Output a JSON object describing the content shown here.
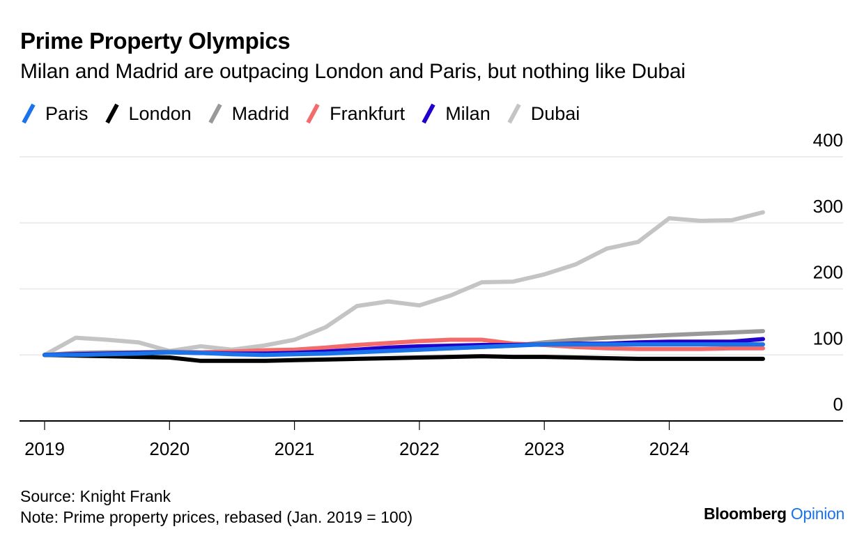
{
  "header": {
    "title": "Prime Property Olympics",
    "subtitle": "Milan and Madrid are outpacing London and Paris, but nothing like Dubai"
  },
  "legend": [
    {
      "name": "Paris",
      "color": "#1a73e8"
    },
    {
      "name": "London",
      "color": "#000000"
    },
    {
      "name": "Madrid",
      "color": "#999999"
    },
    {
      "name": "Frankfurt",
      "color": "#f36b6b"
    },
    {
      "name": "Milan",
      "color": "#2200cc"
    },
    {
      "name": "Dubai",
      "color": "#c4c4c4"
    }
  ],
  "footer": {
    "source": "Source: Knight Frank",
    "note": "Note: Prime property prices, rebased (Jan. 2019 = 100)",
    "brand_main": "Bloomberg",
    "brand_sub": "Opinion"
  },
  "chart_data": {
    "type": "line",
    "title": "Prime Property Olympics",
    "subtitle": "Milan and Madrid are outpacing London and Paris, but nothing like Dubai",
    "xlabel": "",
    "ylabel": "",
    "x": [
      "2019 Q1",
      "2019 Q2",
      "2019 Q3",
      "2019 Q4",
      "2020 Q1",
      "2020 Q2",
      "2020 Q3",
      "2020 Q4",
      "2021 Q1",
      "2021 Q2",
      "2021 Q3",
      "2021 Q4",
      "2022 Q1",
      "2022 Q2",
      "2022 Q3",
      "2022 Q4",
      "2023 Q1",
      "2023 Q2",
      "2023 Q3",
      "2023 Q4",
      "2024 Q1",
      "2024 Q2",
      "2024 Q3",
      "2024 Q4"
    ],
    "x_tick_labels": [
      "2019",
      "2020",
      "2021",
      "2022",
      "2023",
      "2024"
    ],
    "y_tick_labels": [
      "0",
      "100",
      "200",
      "300",
      "400"
    ],
    "ylim": [
      0,
      400
    ],
    "y_axis_position": "right",
    "grid": true,
    "legend_position": "top-left",
    "series": [
      {
        "name": "Dubai",
        "color": "#c4c4c4",
        "values": [
          100,
          126,
          123,
          119,
          106,
          113,
          108,
          114,
          123,
          142,
          174,
          181,
          175,
          190,
          210,
          211,
          222,
          237,
          261,
          271,
          307,
          303,
          304,
          316
        ]
      },
      {
        "name": "Madrid",
        "color": "#999999",
        "values": [
          100,
          103,
          104,
          104,
          105,
          104,
          103,
          103,
          104,
          105,
          106,
          107,
          108,
          110,
          112,
          114,
          119,
          123,
          126,
          128,
          130,
          132,
          134,
          136
        ]
      },
      {
        "name": "Frankfurt",
        "color": "#f36b6b",
        "values": [
          100,
          101,
          102,
          103,
          104,
          104,
          105,
          107,
          108,
          111,
          115,
          118,
          121,
          123,
          123,
          117,
          115,
          112,
          110,
          109,
          109,
          109,
          110,
          110
        ]
      },
      {
        "name": "Milan",
        "color": "#2200cc",
        "values": [
          100,
          101,
          102,
          103,
          104,
          103,
          102,
          102,
          103,
          105,
          108,
          111,
          113,
          114,
          115,
          115,
          116,
          117,
          117,
          119,
          120,
          120,
          120,
          124
        ]
      },
      {
        "name": "London",
        "color": "#000000",
        "values": [
          100,
          99,
          98,
          97,
          96,
          91,
          91,
          91,
          92,
          93,
          94,
          95,
          96,
          97,
          98,
          97,
          97,
          96,
          95,
          94,
          94,
          94,
          94,
          94
        ]
      },
      {
        "name": "Paris",
        "color": "#1a73e8",
        "values": [
          100,
          100,
          101,
          102,
          104,
          103,
          101,
          100,
          101,
          102,
          104,
          106,
          108,
          110,
          112,
          114,
          116,
          116,
          116,
          116,
          116,
          116,
          116,
          116
        ]
      }
    ]
  }
}
